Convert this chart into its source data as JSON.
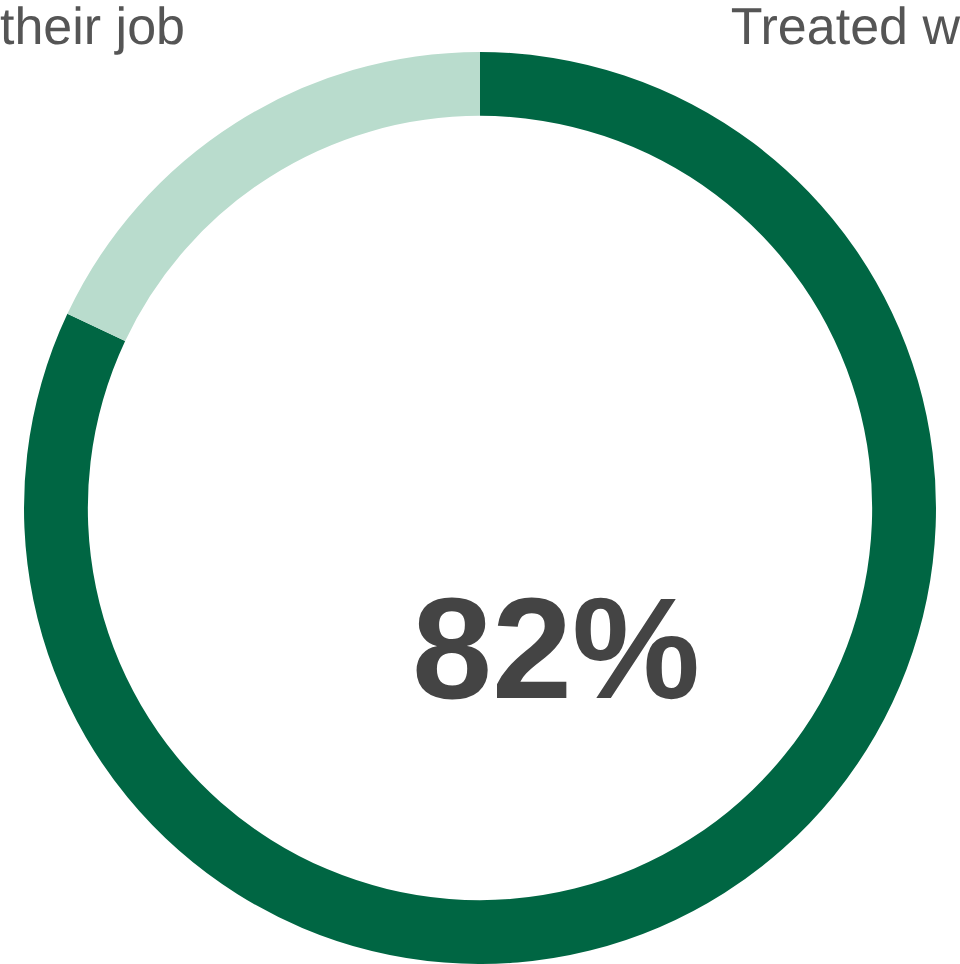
{
  "chart_data": {
    "type": "donut",
    "categories": [
      null,
      null
    ],
    "values": [
      82,
      18
    ],
    "colors": [
      "#006643",
      "#b9dccd"
    ],
    "value_labels": [
      "82%",
      null
    ],
    "annotations": [
      "their job",
      "Treated w"
    ]
  }
}
